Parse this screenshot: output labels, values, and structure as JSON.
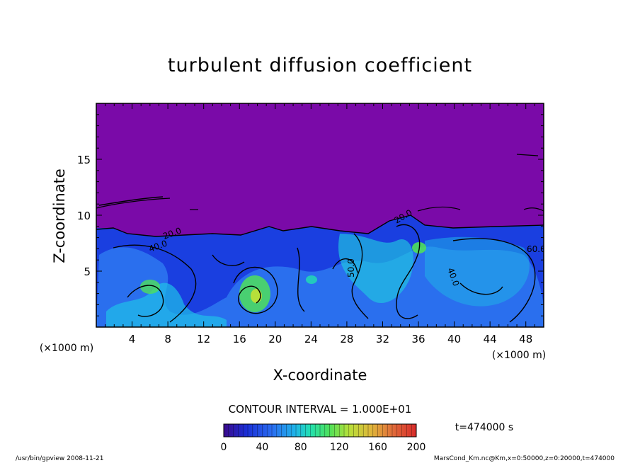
{
  "chart_data": {
    "type": "heatmap",
    "title": "turbulent diffusion coefficient",
    "xlabel": "X-coordinate",
    "ylabel": "Z-coordinate",
    "x_units": "(×1000 m)",
    "y_units": "(×1000 m)",
    "xlim": [
      0,
      50
    ],
    "ylim": [
      0,
      20
    ],
    "x_ticks": [
      4,
      8,
      12,
      16,
      20,
      24,
      28,
      32,
      36,
      40,
      44,
      48
    ],
    "y_ticks": [
      5,
      10,
      15
    ],
    "colorbar": {
      "min": 0,
      "max": 200,
      "ticks": [
        0,
        40,
        80,
        120,
        160,
        200
      ],
      "colors": [
        "#3a0a8c",
        "#1a2fd6",
        "#2a6cf0",
        "#1fb3e8",
        "#22e0b0",
        "#4fe05a",
        "#b7e03a",
        "#e0b43a",
        "#e06a3a",
        "#d82a2a"
      ]
    },
    "contour_interval": "CONTOUR INTERVAL = 1.000E+01",
    "time_label": "t=474000 s",
    "contour_labels": [
      "20.0",
      "40.0",
      "50.0",
      "60.0",
      "20.0",
      "40.0"
    ],
    "background_value_color": "#7a0aa8",
    "grid": false
  },
  "footer": {
    "left": "/usr/bin/gpview   2008-11-21",
    "right": "MarsCond_Km.nc@Km,x=0:50000,z=0:20000,t=474000"
  }
}
